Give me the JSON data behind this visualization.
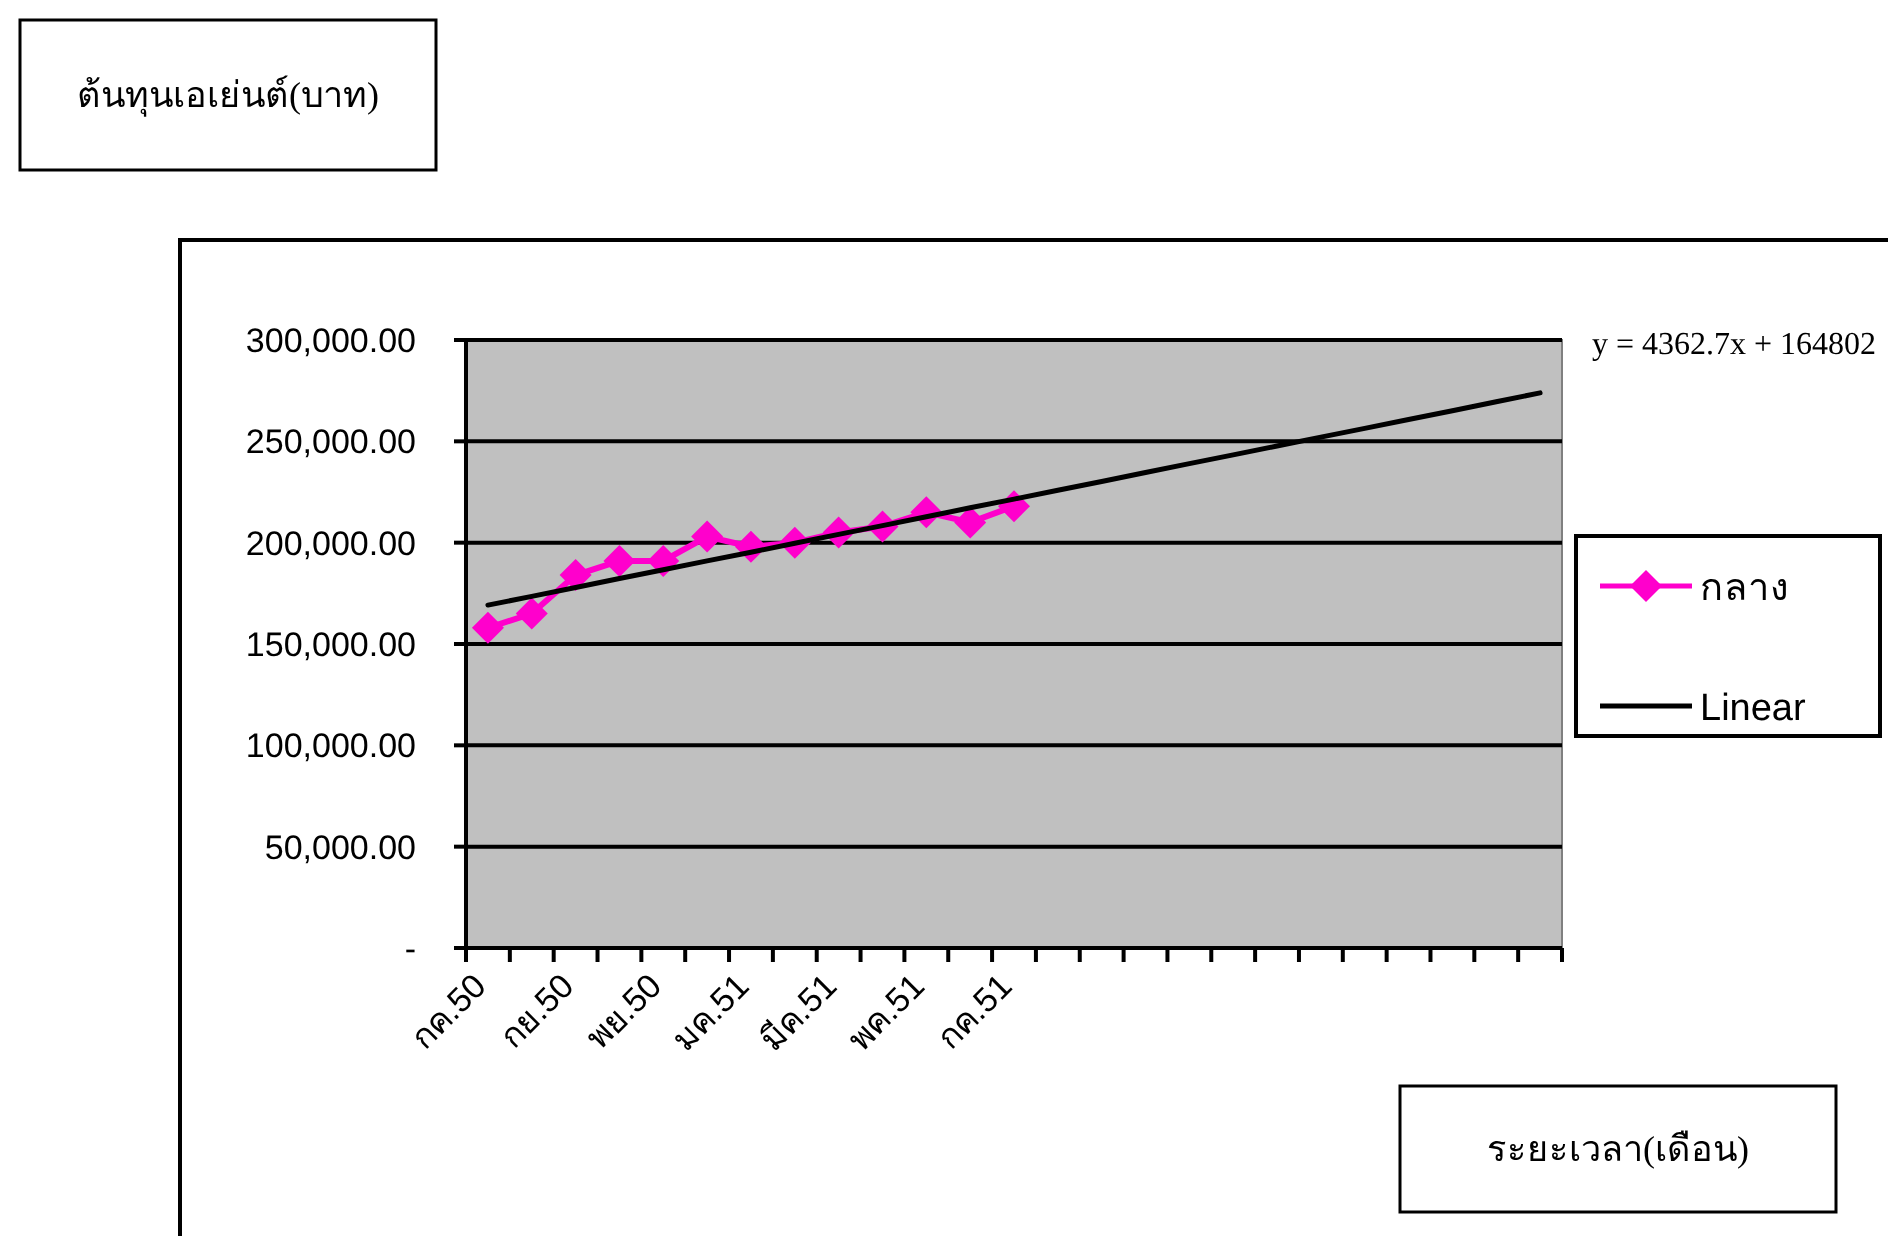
{
  "chart_data": {
    "type": "line",
    "title": "ต้นทุนเอเย่นต์(บาท)",
    "xlabel": "ระยะเวลา(เดือน)",
    "categories": [
      "กค.50",
      null,
      "กย.50",
      null,
      "พย.50",
      null,
      "มค.51",
      null,
      "มีค.51",
      null,
      "พค.51",
      null,
      "กค.51",
      null,
      null,
      null,
      null,
      null,
      null,
      null,
      null,
      null,
      null,
      null,
      null
    ],
    "series": [
      {
        "name": "กลาง",
        "color": "#ff00cc",
        "marker": "diamond",
        "values": [
          158000,
          165000,
          184000,
          191000,
          191000,
          203000,
          198000,
          200000,
          205000,
          208000,
          215000,
          210000,
          218000,
          null,
          null,
          null,
          null,
          null,
          null,
          null,
          null,
          null,
          null,
          null,
          null
        ]
      },
      {
        "name": "Linear",
        "color": "#000000",
        "marker": "none",
        "values": [
          169200,
          173500,
          177900,
          182300,
          186600,
          191000,
          195300,
          199700,
          204100,
          208400,
          212800,
          217200,
          221500,
          225900,
          230200,
          234600,
          239000,
          243300,
          247700,
          252100,
          256400,
          260800,
          265100,
          269500,
          273900
        ]
      }
    ],
    "ylim": [
      0,
      300000
    ],
    "yticks": [
      {
        "value": 0,
        "label": "-"
      },
      {
        "value": 50000,
        "label": "50,000.00"
      },
      {
        "value": 100000,
        "label": "100,000.00"
      },
      {
        "value": 150000,
        "label": "150,000.00"
      },
      {
        "value": 200000,
        "label": "200,000.00"
      },
      {
        "value": 250000,
        "label": "250,000.00"
      },
      {
        "value": 300000,
        "label": "300,000.00"
      }
    ],
    "grid": "y",
    "legend": "right",
    "annotations": [
      "y = 4362.7x + 164802"
    ]
  }
}
